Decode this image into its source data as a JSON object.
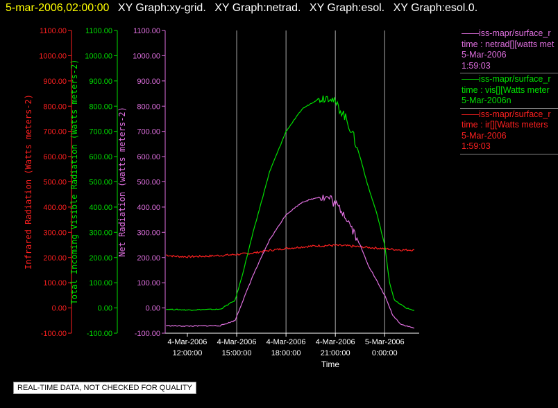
{
  "header": {
    "timestamp": "5-mar-2006,02:00:00",
    "graphs": [
      "XY Graph:xy-grid.",
      "XY Graph:netrad.",
      "XY Graph:esol.",
      "XY Graph:esol.0."
    ]
  },
  "notice": "REAL-TIME DATA, NOT CHECKED FOR QUALITY",
  "colors": {
    "ir": "#ff2020",
    "vis": "#00e000",
    "net": "#e070e0",
    "grid": "#aaaaaa",
    "axis": "#ffffff"
  },
  "legend": [
    {
      "color": "#e070e0",
      "lines": [
        "——iss-mapr/surface_r",
        "time : netrad[][watts met",
        "5-Mar-2006",
        "1:59:03"
      ]
    },
    {
      "color": "#00e000",
      "lines": [
        "——iss-mapr/surface_r",
        "time : vis[][Watts meter",
        "5-Mar-2006n"
      ]
    },
    {
      "color": "#ff2020",
      "lines": [
        "——iss-mapr/surface_r",
        "time : ir[][Watts meters",
        "5-Mar-2006",
        "1:59:03"
      ]
    }
  ],
  "chart_data": {
    "type": "line",
    "xlabel": "Time",
    "x_ticks": [
      {
        "x": 12,
        "label": [
          "4-Mar-2006",
          "12:00:00"
        ]
      },
      {
        "x": 15,
        "label": [
          "4-Mar-2006",
          "15:00:00"
        ]
      },
      {
        "x": 18,
        "label": [
          "4-Mar-2006",
          "18:00:00"
        ]
      },
      {
        "x": 21,
        "label": [
          "4-Mar-2006",
          "21:00:00"
        ]
      },
      {
        "x": 24,
        "label": [
          "5-Mar-2006",
          "0:00:00"
        ]
      }
    ],
    "xlim": [
      10.65,
      26.1
    ],
    "grid_x": [
      15,
      18,
      21,
      24
    ],
    "ylim": [
      -100,
      1100
    ],
    "y_ticks": [
      "-100.00",
      "0.00",
      "100.00",
      "200.00",
      "300.00",
      "400.00",
      "500.00",
      "600.00",
      "700.00",
      "800.00",
      "900.00",
      "1000.00",
      "1100.00"
    ],
    "axes": [
      {
        "name": "ir",
        "label": "Infrared Radiation (Watts meters-2)",
        "color": "#ff2020"
      },
      {
        "name": "vis",
        "label": "Total Incoming Visible Radiation (Watts meters-2)",
        "color": "#00e000"
      },
      {
        "name": "net",
        "label": "Net Radiation (watts meters-2)",
        "color": "#e070e0"
      }
    ],
    "series": [
      {
        "name": "ir",
        "color": "#ff2020",
        "points": [
          [
            10.7,
            210
          ],
          [
            11.2,
            205
          ],
          [
            12,
            203
          ],
          [
            13,
            205
          ],
          [
            14,
            208
          ],
          [
            15,
            212
          ],
          [
            16,
            218
          ],
          [
            17,
            228
          ],
          [
            18,
            236
          ],
          [
            19,
            242
          ],
          [
            20,
            247
          ],
          [
            21,
            248
          ],
          [
            22,
            245
          ],
          [
            23,
            240
          ],
          [
            24,
            235
          ],
          [
            25,
            230
          ],
          [
            25.8,
            230
          ]
        ]
      },
      {
        "name": "vis",
        "color": "#00e000",
        "points": [
          [
            10.7,
            -5
          ],
          [
            12,
            -8
          ],
          [
            14,
            -5
          ],
          [
            14.9,
            30
          ],
          [
            15.3,
            120
          ],
          [
            16,
            300
          ],
          [
            17,
            540
          ],
          [
            18,
            700
          ],
          [
            19,
            790
          ],
          [
            20,
            830
          ],
          [
            20.7,
            840
          ],
          [
            21,
            810
          ],
          [
            21.5,
            770
          ],
          [
            22,
            700
          ],
          [
            22.5,
            600
          ],
          [
            23,
            480
          ],
          [
            23.5,
            380
          ],
          [
            24,
            250
          ],
          [
            24.3,
            100
          ],
          [
            24.6,
            30
          ],
          [
            25.3,
            0
          ],
          [
            25.8,
            -10
          ]
        ]
      },
      {
        "name": "net",
        "color": "#e070e0",
        "points": [
          [
            10.7,
            -70
          ],
          [
            12,
            -72
          ],
          [
            14,
            -70
          ],
          [
            14.9,
            -50
          ],
          [
            15.2,
            0
          ],
          [
            16,
            130
          ],
          [
            17,
            270
          ],
          [
            18,
            370
          ],
          [
            19,
            420
          ],
          [
            20,
            440
          ],
          [
            20.7,
            435
          ],
          [
            21,
            410
          ],
          [
            21.5,
            380
          ],
          [
            22,
            320
          ],
          [
            22.5,
            250
          ],
          [
            23,
            170
          ],
          [
            23.5,
            110
          ],
          [
            24,
            50
          ],
          [
            24.5,
            -30
          ],
          [
            25,
            -65
          ],
          [
            25.8,
            -80
          ]
        ]
      }
    ]
  }
}
